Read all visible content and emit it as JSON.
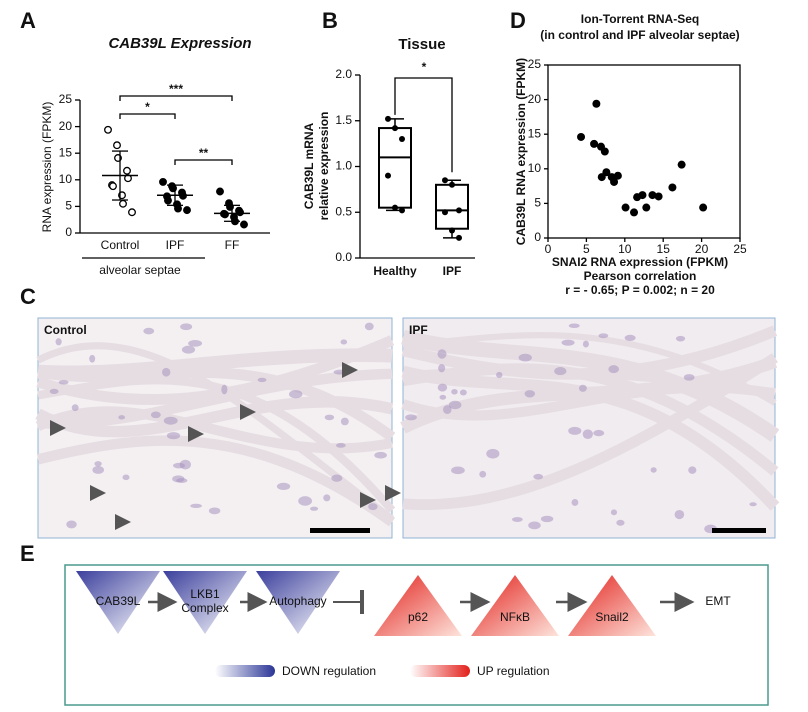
{
  "panels": [
    "A",
    "B",
    "C",
    "D",
    "E"
  ],
  "chart_data": [
    {
      "type": "dot",
      "title": "CAB39L Expression",
      "y_label": "RNA expression (FPKM)",
      "categories": [
        "Control",
        "IPF",
        "FF"
      ],
      "group_label": "alveolar septae",
      "marker": [
        "open",
        "filled",
        "filled"
      ],
      "points": [
        [
          19.4,
          16.5,
          14.1,
          11.7,
          10.3,
          9.0,
          8.8,
          7.1,
          5.5,
          3.9
        ],
        [
          9.6,
          8.8,
          8.4,
          7.6,
          7.0,
          6.9,
          6.1,
          5.4,
          4.6,
          4.3
        ],
        [
          7.8,
          5.6,
          4.9,
          4.2,
          3.9,
          3.6,
          3.5,
          3.0,
          2.2,
          1.6
        ]
      ],
      "means": [
        10.8,
        7.1,
        3.7
      ],
      "sd": [
        4.6,
        1.9,
        1.5
      ],
      "annotations": [
        "***",
        "*",
        "**"
      ],
      "ylim": [
        0,
        25
      ],
      "yticks": [
        0,
        5,
        10,
        15,
        20,
        25
      ]
    },
    {
      "type": "box",
      "title": "Tissue",
      "y_label": [
        "CAB39L mRNA",
        "relative expression"
      ],
      "categories": [
        "Healthy",
        "IPF"
      ],
      "boxes": [
        {
          "min": 0.52,
          "q1": 0.55,
          "median": 1.1,
          "q3": 1.42,
          "max": 1.52
        },
        {
          "min": 0.22,
          "q1": 0.32,
          "median": 0.52,
          "q3": 0.8,
          "max": 0.85
        }
      ],
      "points": [
        [
          1.52,
          1.42,
          1.3,
          0.9,
          0.55,
          0.52
        ],
        [
          0.85,
          0.8,
          0.52,
          0.5,
          0.3,
          0.22
        ]
      ],
      "annotations": [
        "*"
      ],
      "ylim": [
        0,
        2
      ],
      "yticks": [
        {
          "value": 0,
          "label": "0.0"
        },
        0.5,
        {
          "value": 1,
          "label": "1.0"
        },
        1.5,
        {
          "value": 2,
          "label": "2.0"
        }
      ]
    },
    {
      "type": "scatter",
      "title": "Ion-Torrent RNA-Seq",
      "subtitle": "(in control and IPF alveolar septae)",
      "x_label": "SNAI2 RNA expression (FPKM)",
      "y_label": "CAB39L RNA expression (FPKM)",
      "annotations": [
        "Pearson correlation",
        "r = - 0.65; P = 0.002; n = 20"
      ],
      "color": "#000000",
      "x": [
        4.3,
        6.0,
        6.3,
        6.9,
        7.0,
        7.4,
        7.6,
        8.3,
        8.6,
        9.1,
        10.1,
        11.2,
        11.6,
        12.3,
        12.8,
        13.6,
        14.4,
        16.2,
        17.4,
        20.2
      ],
      "y": [
        14.6,
        13.6,
        19.4,
        13.2,
        8.8,
        12.5,
        9.5,
        8.8,
        8.1,
        9.0,
        4.4,
        3.7,
        5.9,
        6.2,
        4.4,
        6.2,
        6.0,
        7.3,
        10.6,
        4.4
      ],
      "xlim": [
        0,
        25
      ],
      "xticks": [
        0,
        5,
        10,
        15,
        20,
        25
      ],
      "ylim": [
        0,
        25
      ],
      "yticks": [
        0,
        5,
        10,
        15,
        20,
        25
      ]
    }
  ],
  "micrographs": [
    "Control",
    "IPF"
  ],
  "pathway": {
    "down": [
      "CAB39L",
      "LKB1 Complex",
      "Autophagy"
    ],
    "up": [
      "p62",
      "NFκB",
      "Snail2"
    ],
    "end": "EMT",
    "legend": [
      "DOWN regulation",
      "UP regulation"
    ]
  }
}
